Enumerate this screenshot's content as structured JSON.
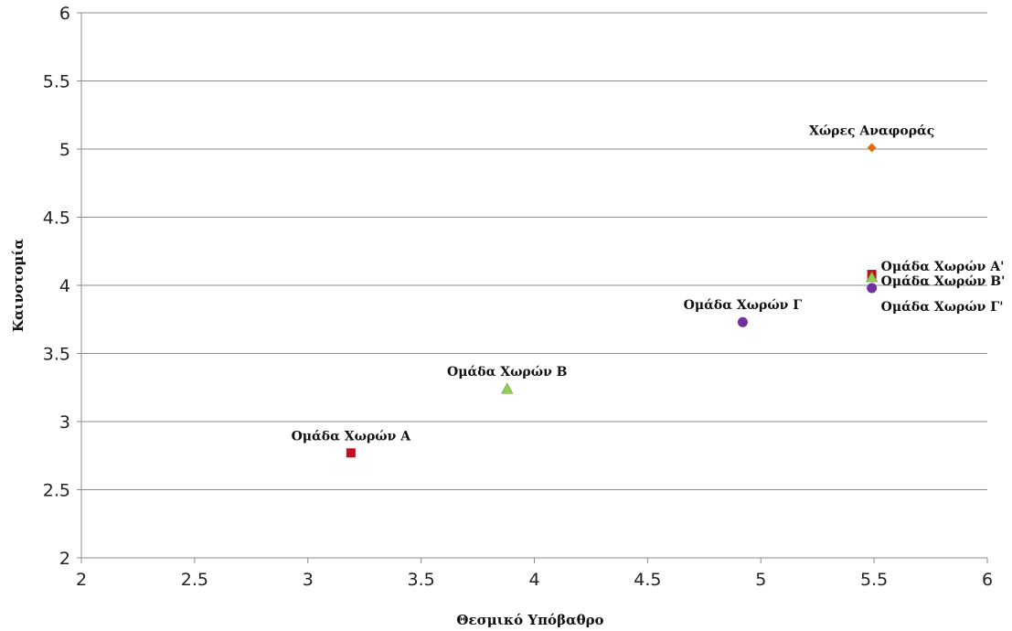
{
  "chart_data": {
    "type": "scatter",
    "title": "",
    "xlabel": "Θεσμικό Υπόβαθρο",
    "ylabel": "Καινοτομία",
    "xlim": [
      2,
      6
    ],
    "ylim": [
      2,
      6
    ],
    "x_ticks": [
      "2",
      "2.5",
      "3",
      "3.5",
      "4",
      "4.5",
      "5",
      "5.5",
      "6"
    ],
    "y_ticks": [
      "2",
      "2.5",
      "3",
      "3.5",
      "4",
      "4.5",
      "5",
      "5.5",
      "6"
    ],
    "grid": "horizontal",
    "legend": "none",
    "points": [
      {
        "label": "Χώρες Αναφοράς",
        "x": 5.49,
        "y": 5.01,
        "marker": "diamond",
        "color": "#E46C0A",
        "label_pos": "above"
      },
      {
        "label": "Ομάδα Χωρών Α",
        "x": 3.19,
        "y": 2.77,
        "marker": "square",
        "color": "#C0111F",
        "label_pos": "above"
      },
      {
        "label": "Ομάδα Χωρών Β",
        "x": 3.88,
        "y": 3.24,
        "marker": "triangle",
        "color": "#92D050",
        "label_pos": "above"
      },
      {
        "label": "Ομάδα Χωρών Γ",
        "x": 4.92,
        "y": 3.73,
        "marker": "circle",
        "color": "#7030A0",
        "label_pos": "above"
      },
      {
        "label": "Ομάδα Χωρών Α'",
        "x": 5.49,
        "y": 4.08,
        "marker": "square",
        "color": "#C0111F",
        "label_pos": "right-top"
      },
      {
        "label": "Ομάδα Χωρών Β'",
        "x": 5.49,
        "y": 4.06,
        "marker": "triangle",
        "color": "#92D050",
        "label_pos": "right-mid"
      },
      {
        "label": "Ομάδα Χωρών Γ'",
        "x": 5.49,
        "y": 3.98,
        "marker": "circle",
        "color": "#7030A0",
        "label_pos": "right-bottom"
      }
    ]
  }
}
